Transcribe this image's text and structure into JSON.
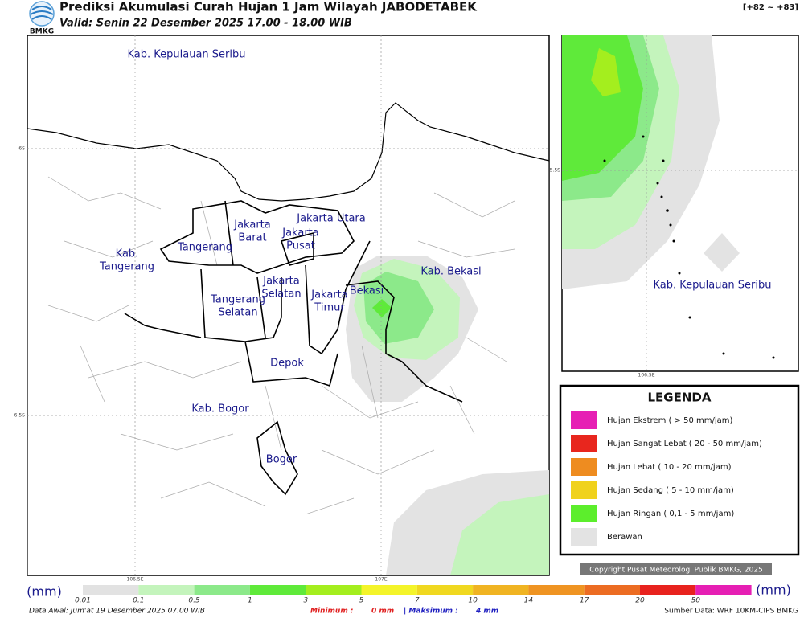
{
  "header": {
    "logo": "BMKG",
    "title": "Prediksi Akumulasi Curah Hujan 1 Jam Wilayah JABODETABEK",
    "valid": "Valid: Senin 22 Desember 2025 17.00 - 18.00 WIB",
    "range": "[+82 ~ +83]"
  },
  "map": {
    "labels": [
      {
        "lines": [
          "Kab. Kepulauan Seribu"
        ]
      },
      {
        "lines": [
          "Jakarta Utara"
        ]
      },
      {
        "lines": [
          "Jakarta",
          "Barat"
        ]
      },
      {
        "lines": [
          "Jakarta",
          "Pusat"
        ]
      },
      {
        "lines": [
          "Tangerang"
        ]
      },
      {
        "lines": [
          "Kab.",
          "Tangerang"
        ]
      },
      {
        "lines": [
          "Jakarta",
          "Selatan"
        ]
      },
      {
        "lines": [
          "Jakarta",
          "Timur"
        ]
      },
      {
        "lines": [
          "Tangerang",
          "Selatan"
        ]
      },
      {
        "lines": [
          "Bekasi"
        ]
      },
      {
        "lines": [
          "Kab. Bekasi"
        ]
      },
      {
        "lines": [
          "Depok"
        ]
      },
      {
        "lines": [
          "Kab. Bogor"
        ]
      },
      {
        "lines": [
          "Bogor"
        ]
      }
    ],
    "lat_ticks": [
      "6S",
      "6.5S"
    ],
    "lon_ticks": [
      "106.5E",
      "107E"
    ]
  },
  "inset": {
    "label": "Kab. Kepulauan Seribu",
    "lat_tick": "5.5S",
    "lon_tick": "106.5E"
  },
  "legend": {
    "title": "LEGENDA",
    "items": [
      {
        "label": "Hujan Ekstrem ( > 50 mm/jam)",
        "color": "#e61fb4"
      },
      {
        "label": "Hujan Sangat Lebat ( 20 - 50 mm/jam)",
        "color": "#e8261e"
      },
      {
        "label": "Hujan Lebat ( 10 - 20 mm/jam)",
        "color": "#ee8c20"
      },
      {
        "label": "Hujan Sedang ( 5 - 10 mm/jam)",
        "color": "#f0d21c"
      },
      {
        "label": "Hujan Ringan ( 0,1 - 5 mm/jam)",
        "color": "#5cee2c"
      },
      {
        "label": "Berawan",
        "color": "#e3e3e3"
      }
    ]
  },
  "copyright": "Copyright Pusat Meteorologi Publik BMKG, 2025",
  "colorbar": {
    "unit": "(mm)",
    "labels": [
      0.01,
      0.1,
      0.5,
      1,
      3,
      5,
      7,
      10,
      14,
      17,
      20,
      50
    ],
    "colors": [
      "#e2e2e2",
      "#c4f4bc",
      "#8ce98a",
      "#5fea3a",
      "#a4ee1e",
      "#f4f42a",
      "#f0d820",
      "#f0b422",
      "#ef9422",
      "#ec6c22",
      "#e8221e",
      "#e61fb4"
    ]
  },
  "footer": {
    "data_awal": "Data Awal: Jum'at 19 Desember 2025 07.00 WIB",
    "min_label": "Minimum :",
    "min_value": "0 mm",
    "max_label": "| Maksimum :",
    "max_value": "4 mm",
    "source": "Sumber Data: WRF 10KM-CIPS BMKG"
  }
}
